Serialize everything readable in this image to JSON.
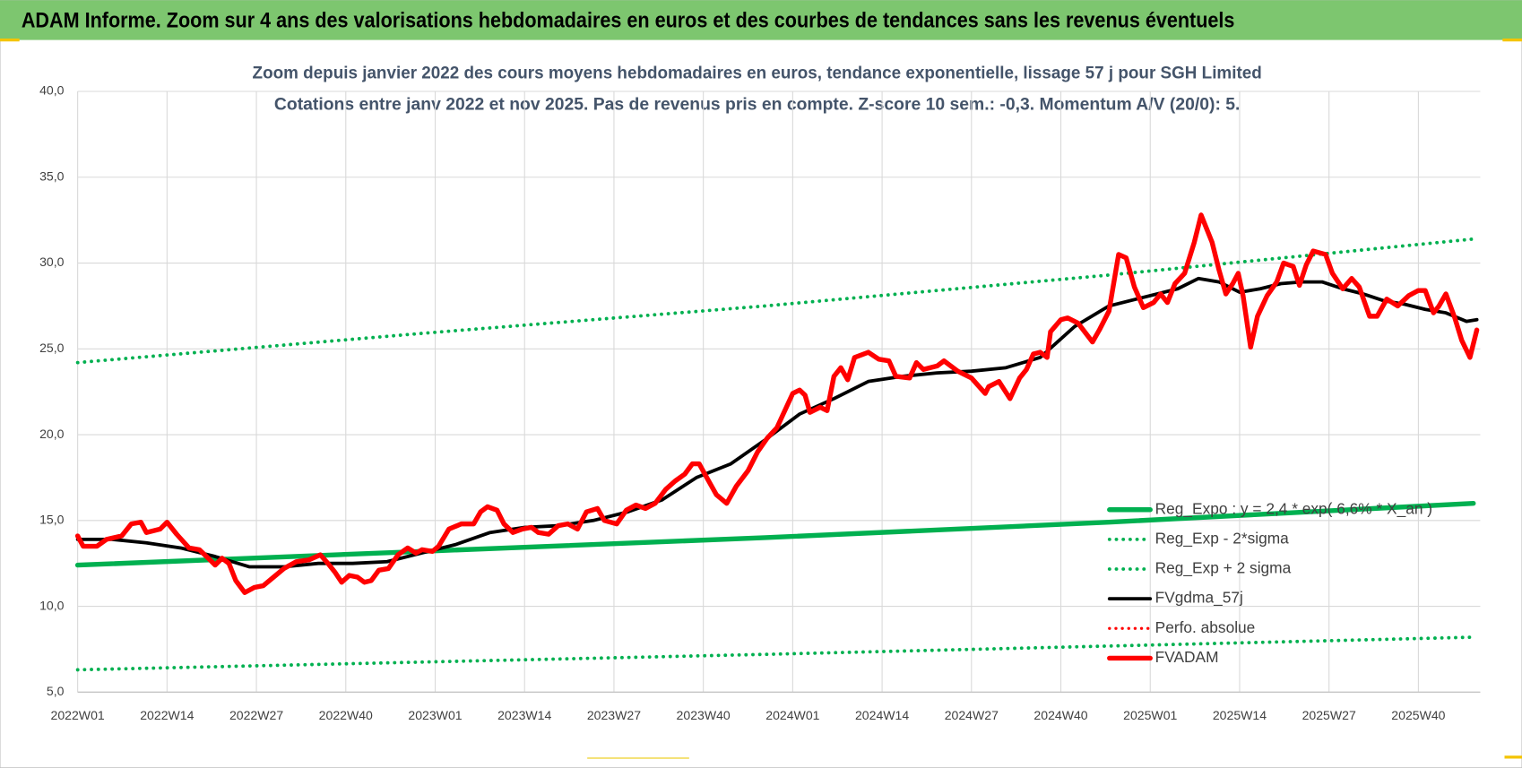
{
  "header": "ADAM Informe. Zoom sur 4 ans des valorisations hebdomadaires en euros et des courbes de tendances sans les revenus éventuels",
  "chart_data": {
    "type": "line",
    "title": "Zoom depuis janvier 2022 des cours moyens hebdomadaires en euros, tendance exponentielle, lissage 57 j pour SGH Limited",
    "subtitle": "Cotations entre janv 2022 et nov 2025. Pas de revenus pris en compte. Z-score 10 sem.: -0,3. Momentum A/V (20/0): 5.",
    "xlim": [
      0,
      204
    ],
    "xticks": [
      {
        "value": 0,
        "label": "2022W01"
      },
      {
        "value": 13,
        "label": "2022W14"
      },
      {
        "value": 26,
        "label": "2022W27"
      },
      {
        "value": 39,
        "label": "2022W40"
      },
      {
        "value": 52,
        "label": "2023W01"
      },
      {
        "value": 65,
        "label": "2023W14"
      },
      {
        "value": 78,
        "label": "2023W27"
      },
      {
        "value": 91,
        "label": "2023W40"
      },
      {
        "value": 104,
        "label": "2024W01"
      },
      {
        "value": 117,
        "label": "2024W14"
      },
      {
        "value": 130,
        "label": "2024W27"
      },
      {
        "value": 143,
        "label": "2024W40"
      },
      {
        "value": 156,
        "label": "2025W01"
      },
      {
        "value": 169,
        "label": "2025W14"
      },
      {
        "value": 182,
        "label": "2025W27"
      },
      {
        "value": 195,
        "label": "2025W40"
      }
    ],
    "ylim": [
      5,
      40
    ],
    "yticks": [
      {
        "value": 5,
        "label": "5,0"
      },
      {
        "value": 10,
        "label": "10,0"
      },
      {
        "value": 15,
        "label": "15,0"
      },
      {
        "value": 20,
        "label": "20,0"
      },
      {
        "value": 25,
        "label": "25,0"
      },
      {
        "value": 30,
        "label": "30,0"
      },
      {
        "value": 35,
        "label": "35,0"
      },
      {
        "value": 40,
        "label": "40,0"
      }
    ],
    "grid": true,
    "legend": "right",
    "series": [
      {
        "name": "Reg_Expo : y = 2,4 * exp( 6,6% * X_an )",
        "color": "#00b050",
        "dotted": false,
        "x": [
          0,
          50,
          100,
          150,
          203
        ],
        "values": [
          12.4,
          13.2,
          14.0,
          14.9,
          16.0
        ]
      },
      {
        "name": "Reg_Exp - 2*sigma",
        "color": "#00b050",
        "dotted": true,
        "x": [
          0,
          100,
          203
        ],
        "values": [
          6.3,
          7.2,
          8.2
        ]
      },
      {
        "name": "Reg_Exp + 2 sigma",
        "color": "#00b050",
        "dotted": true,
        "x": [
          0,
          50,
          100,
          150,
          203
        ],
        "values": [
          24.2,
          25.9,
          27.5,
          29.3,
          31.4
        ]
      },
      {
        "name": "FVgdma_57j",
        "color": "#000000",
        "dotted": false,
        "x": [
          0,
          5,
          10,
          15,
          20,
          25,
          30,
          35,
          40,
          45,
          50,
          55,
          60,
          65,
          70,
          75,
          80,
          85,
          90,
          95,
          100,
          105,
          110,
          115,
          120,
          125,
          130,
          135,
          140,
          145,
          150,
          155,
          160,
          163,
          166,
          169,
          172,
          175,
          178,
          181,
          184,
          187,
          190,
          193,
          196,
          199,
          202,
          203.5
        ],
        "values": [
          13.9,
          13.9,
          13.7,
          13.4,
          12.9,
          12.3,
          12.3,
          12.5,
          12.5,
          12.6,
          13.1,
          13.6,
          14.3,
          14.6,
          14.7,
          15.0,
          15.5,
          16.2,
          17.5,
          18.3,
          19.7,
          21.2,
          22.1,
          23.1,
          23.4,
          23.6,
          23.7,
          23.9,
          24.5,
          26.3,
          27.5,
          28.0,
          28.5,
          29.1,
          28.9,
          28.3,
          28.5,
          28.8,
          28.9,
          28.9,
          28.5,
          28.2,
          27.8,
          27.6,
          27.3,
          27.1,
          26.6,
          26.7
        ]
      },
      {
        "name": "Perfo. absolue",
        "color": "#ff0000",
        "dotted": true,
        "x": [],
        "values": []
      },
      {
        "name": "FVADAM",
        "color": "#ff0000",
        "dotted": false,
        "x": [
          0,
          0.8,
          2.8,
          4.2,
          6.4,
          7.8,
          9.2,
          10,
          12,
          13,
          14.4,
          16.2,
          17.7,
          19,
          20,
          21,
          22,
          23,
          24.3,
          25.7,
          27,
          28.5,
          30,
          31.8,
          33.6,
          35.3,
          36.4,
          37.4,
          38.4,
          39.5,
          40.7,
          41.7,
          42.7,
          43.8,
          45.2,
          46.6,
          48,
          49.2,
          50.1,
          51.6,
          52.5,
          54,
          55.8,
          57.6,
          58.6,
          59.6,
          61,
          62,
          63.3,
          64.7,
          66,
          67,
          68.5,
          69.9,
          71.3,
          72.7,
          74,
          75.6,
          76.6,
          78.4,
          79.8,
          81.2,
          82.6,
          84,
          85.5,
          86.9,
          88.3,
          89.4,
          90.4,
          91.5,
          92.9,
          94.4,
          95.8,
          97.5,
          98.9,
          100.3,
          101.7,
          104,
          105,
          105.8,
          106.5,
          108,
          109,
          110,
          111,
          112,
          113,
          115,
          116.5,
          118,
          119,
          121,
          122,
          123,
          125,
          126,
          128,
          130,
          132,
          132.5,
          134,
          135.6,
          137,
          138,
          139,
          140,
          141,
          141.5,
          143,
          144,
          145.5,
          147.6,
          148.6,
          150,
          151.4,
          152.5,
          153.7,
          155,
          156.5,
          157.5,
          158.5,
          159.6,
          161,
          162.4,
          163.4,
          165,
          166,
          167,
          168,
          168.8,
          169.5,
          170.6,
          171.6,
          173,
          174.4,
          175.4,
          176.8,
          177.7,
          178.7,
          179.7,
          181.5,
          182.5,
          184,
          185.3,
          186.4,
          187.9,
          189,
          190.4,
          192,
          193.6,
          195,
          196,
          197.2,
          198,
          199,
          200.3,
          201.3,
          202.5,
          203.5
        ],
        "values": [
          14.1,
          13.5,
          13.5,
          13.9,
          14.1,
          14.8,
          14.9,
          14.3,
          14.5,
          14.9,
          14.2,
          13.4,
          13.3,
          12.8,
          12.4,
          12.8,
          12.5,
          11.5,
          10.8,
          11.1,
          11.2,
          11.7,
          12.2,
          12.6,
          12.7,
          13.0,
          12.5,
          12.0,
          11.4,
          11.8,
          11.7,
          11.4,
          11.5,
          12.1,
          12.2,
          13.0,
          13.4,
          13.1,
          13.3,
          13.2,
          13.5,
          14.5,
          14.8,
          14.8,
          15.5,
          15.8,
          15.6,
          14.8,
          14.3,
          14.5,
          14.6,
          14.3,
          14.2,
          14.7,
          14.8,
          14.5,
          15.5,
          15.7,
          15.0,
          14.8,
          15.6,
          15.9,
          15.7,
          16.0,
          16.8,
          17.3,
          17.7,
          18.3,
          18.3,
          17.5,
          16.5,
          16.0,
          17.0,
          17.9,
          19.0,
          19.8,
          20.4,
          22.4,
          22.6,
          22.3,
          21.3,
          21.6,
          21.4,
          23.4,
          23.9,
          23.2,
          24.5,
          24.8,
          24.4,
          24.3,
          23.4,
          23.3,
          24.2,
          23.8,
          24.0,
          24.3,
          23.7,
          23.3,
          22.4,
          22.8,
          23.1,
          22.1,
          23.3,
          23.8,
          24.7,
          24.8,
          24.5,
          26.0,
          26.7,
          26.8,
          26.5,
          25.4,
          26.1,
          27.2,
          30.5,
          30.3,
          28.6,
          27.4,
          27.7,
          28.2,
          27.7,
          28.8,
          29.4,
          31.2,
          32.8,
          31.2,
          29.6,
          28.2,
          28.8,
          29.4,
          28.1,
          25.1,
          26.9,
          28.1,
          28.9,
          30.0,
          29.8,
          28.7,
          29.9,
          30.7,
          30.5,
          29.4,
          28.5,
          29.1,
          28.6,
          26.9,
          26.9,
          27.9,
          27.5,
          28.1,
          28.4,
          28.4,
          27.1,
          27.5,
          28.2,
          26.8,
          25.5,
          24.5,
          26.1
        ]
      }
    ]
  }
}
